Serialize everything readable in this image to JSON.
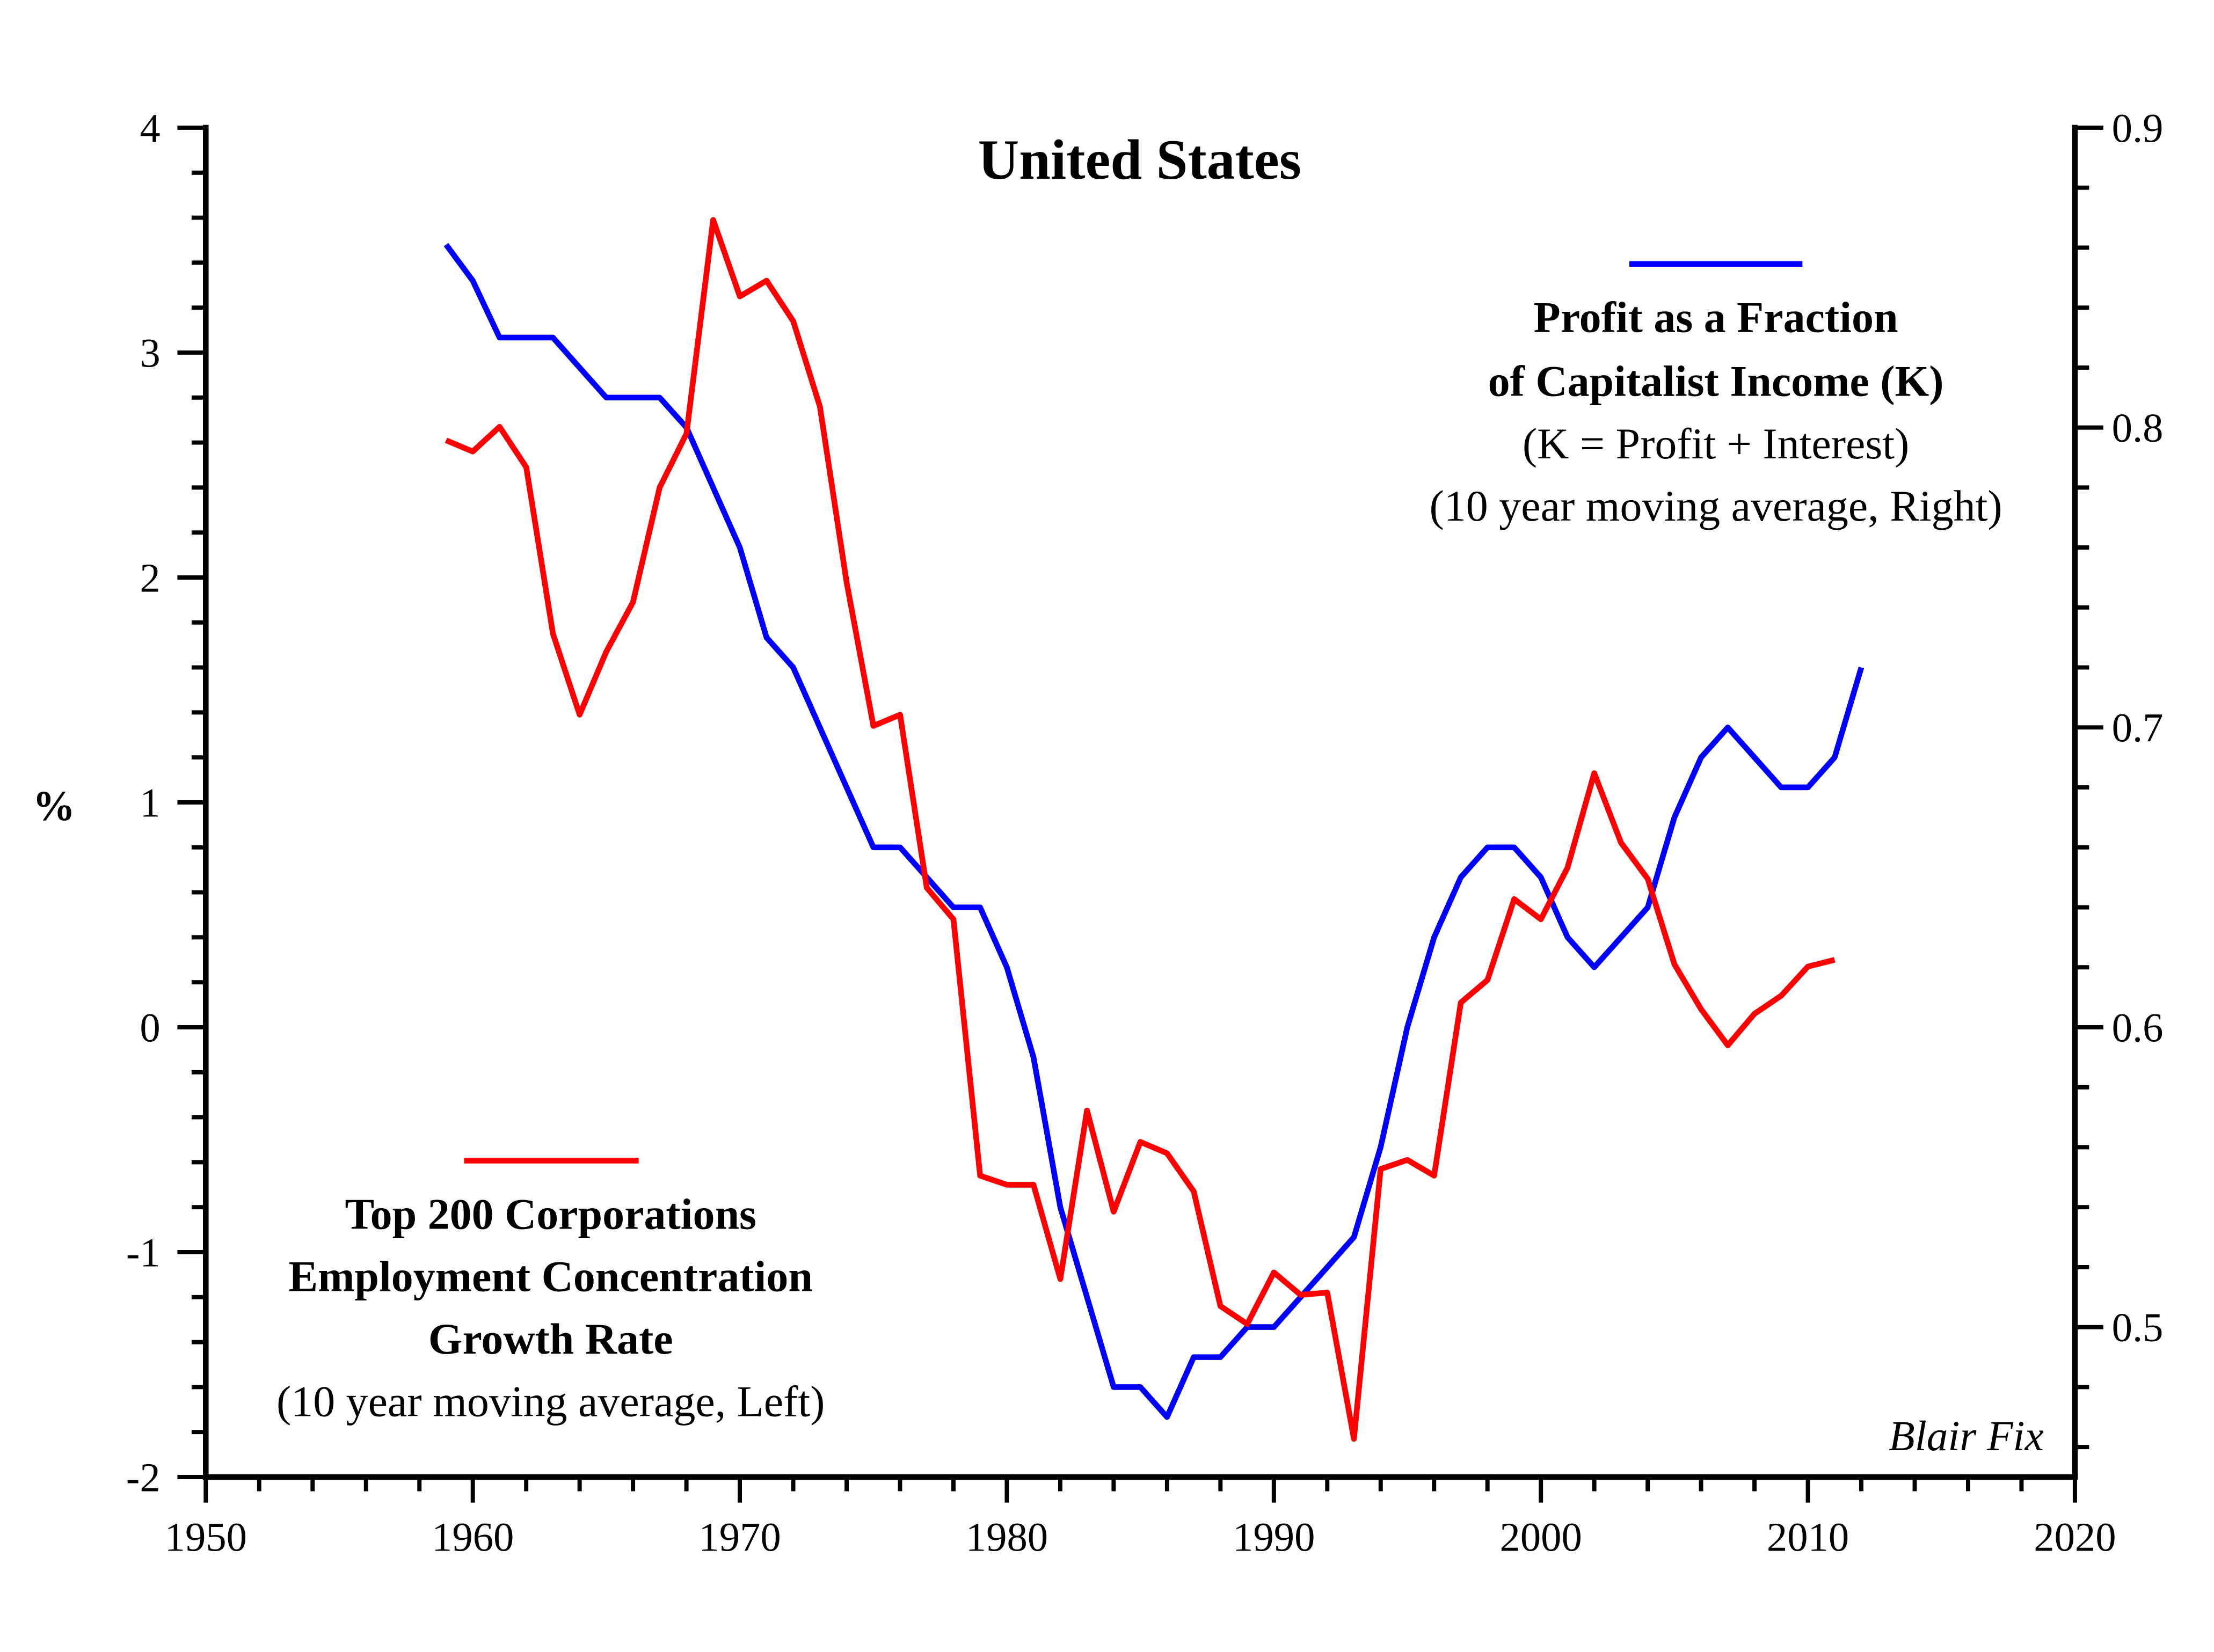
{
  "chart_data": {
    "type": "line",
    "title": "United States",
    "ylabel_left": "%",
    "signature": "Blair Fix",
    "xlim": [
      1950,
      2020
    ],
    "ylim_left": [
      -2,
      4
    ],
    "ylim_right": [
      0.45,
      0.9
    ],
    "grid": false,
    "x_ticks": [
      "1950",
      "1960",
      "1970",
      "1980",
      "1990",
      "2000",
      "2010",
      "2020"
    ],
    "y_left_ticks": [
      "-2",
      "-1",
      "0",
      "1",
      "2",
      "3",
      "4"
    ],
    "y_right_ticks": [
      "0.5",
      "0.6",
      "0.7",
      "0.8",
      "0.9"
    ],
    "series": [
      {
        "axis": "right",
        "color": "#0000ff",
        "legend_lines": [
          "Profit as a Fraction",
          "of Capitalist Income (K)",
          "(K = Profit + Interest)",
          "(10 year moving average, Right)"
        ],
        "legend_placement": "top-right",
        "x_start": 1959,
        "values": [
          0.861,
          0.849,
          0.83,
          0.83,
          0.83,
          0.82,
          0.81,
          0.81,
          0.81,
          0.8,
          0.78,
          0.76,
          0.73,
          0.72,
          0.7,
          0.68,
          0.66,
          0.66,
          0.65,
          0.64,
          0.64,
          0.62,
          0.59,
          0.54,
          0.51,
          0.48,
          0.48,
          0.47,
          0.49,
          0.49,
          0.5,
          0.5,
          0.51,
          0.52,
          0.53,
          0.56,
          0.6,
          0.63,
          0.65,
          0.66,
          0.66,
          0.65,
          0.63,
          0.62,
          0.63,
          0.64,
          0.67,
          0.69,
          0.7,
          0.69,
          0.68,
          0.68,
          0.69,
          0.72
        ]
      },
      {
        "axis": "left",
        "color": "#ff0000",
        "legend_lines": [
          "Top 200 Corporations",
          "Employment Concentration",
          "Growth Rate",
          "(10 year moving average, Left)"
        ],
        "legend_placement": "bottom-left",
        "x_start": 1959,
        "values": [
          2.61,
          2.56,
          2.67,
          2.49,
          1.75,
          1.39,
          1.67,
          1.89,
          2.4,
          2.64,
          3.59,
          3.25,
          3.32,
          3.14,
          2.76,
          1.98,
          1.34,
          1.39,
          0.62,
          0.48,
          -0.66,
          -0.7,
          -0.7,
          -1.12,
          -0.37,
          -0.82,
          -0.51,
          -0.56,
          -0.73,
          -1.24,
          -1.32,
          -1.09,
          -1.19,
          -1.18,
          -1.83,
          -0.63,
          -0.59,
          -0.66,
          0.11,
          0.21,
          0.57,
          0.48,
          0.71,
          1.13,
          0.82,
          0.66,
          0.28,
          0.08,
          -0.08,
          0.06,
          0.14,
          0.27,
          0.3
        ]
      }
    ]
  }
}
